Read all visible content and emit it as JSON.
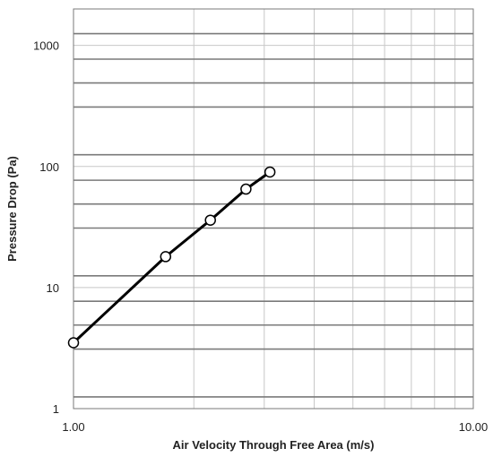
{
  "chart_data": {
    "type": "line",
    "title": "",
    "xlabel": "Air Velocity Through Free Area (m/s)",
    "ylabel": "Pressure Drop (Pa)",
    "x_scale": "log",
    "y_scale": "log",
    "xlim": [
      1,
      10
    ],
    "ylim": [
      1,
      2000
    ],
    "grid": true,
    "x_tick_labels": [
      {
        "value": 1,
        "label": "1.00"
      },
      {
        "value": 10,
        "label": "10.00"
      }
    ],
    "y_tick_labels": [
      {
        "value": 1,
        "label": "1"
      },
      {
        "value": 10,
        "label": "10"
      },
      {
        "value": 100,
        "label": "100"
      },
      {
        "value": 1000,
        "label": "1000"
      }
    ],
    "series": [
      {
        "x": [
          1.0,
          1.7,
          2.2,
          2.7,
          3.1
        ],
        "y": [
          3.5,
          18,
          36,
          65,
          90
        ]
      }
    ],
    "colors": {
      "line": "#000000",
      "marker_fill": "#ffffff",
      "grid_light": "#c8c8c8",
      "grid_dark": "#7a7a7a"
    }
  }
}
